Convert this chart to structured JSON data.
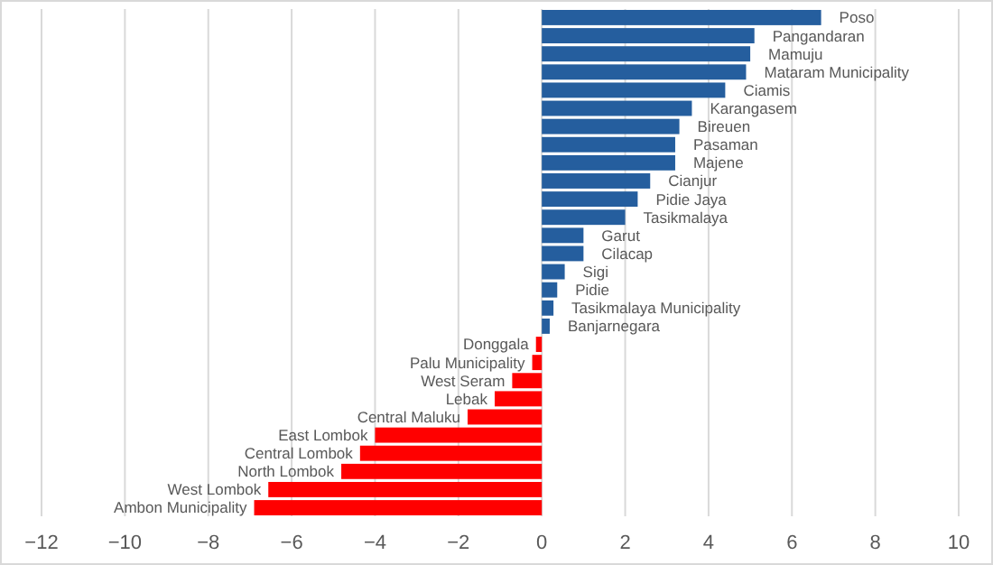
{
  "chart_data": {
    "type": "bar",
    "orientation": "horizontal",
    "categories": [
      "Poso",
      "Pangandaran",
      "Mamuju",
      "Mataram Municipality",
      "Ciamis",
      "Karangasem",
      "Bireuen",
      "Pasaman",
      "Majene",
      "Cianjur",
      "Pidie Jaya",
      "Tasikmalaya",
      "Garut",
      "Cilacap",
      "Sigi",
      "Pidie",
      "Tasikmalaya Municipality",
      "Banjarnegara",
      "Donggala",
      "Palu Municipality",
      "West Seram",
      "Lebak",
      "Central Maluku",
      "East Lombok",
      "Central Lombok",
      "North Lombok",
      "West Lombok",
      "Ambon Municipality"
    ],
    "values": [
      6.7,
      5.1,
      5.0,
      4.9,
      4.4,
      3.6,
      3.3,
      3.2,
      3.2,
      2.6,
      2.3,
      2.0,
      1.0,
      1.0,
      0.55,
      0.37,
      0.28,
      0.19,
      -0.14,
      -0.23,
      -0.71,
      -1.13,
      -1.78,
      -4.0,
      -4.36,
      -4.81,
      -6.56,
      -6.9
    ],
    "colors": [
      "#255e9e",
      "#255e9e",
      "#255e9e",
      "#255e9e",
      "#255e9e",
      "#255e9e",
      "#255e9e",
      "#255e9e",
      "#255e9e",
      "#255e9e",
      "#255e9e",
      "#255e9e",
      "#255e9e",
      "#255e9e",
      "#255e9e",
      "#255e9e",
      "#255e9e",
      "#255e9e",
      "#ff0000",
      "#ff0000",
      "#ff0000",
      "#ff0000",
      "#ff0000",
      "#ff0000",
      "#ff0000",
      "#ff0000",
      "#ff0000",
      "#ff0000"
    ],
    "xlim": [
      -12,
      10
    ],
    "xticks": [
      {
        "value": -12,
        "label": "−12"
      },
      {
        "value": -10,
        "label": "−10"
      },
      {
        "value": -8,
        "label": "−8"
      },
      {
        "value": -6,
        "label": "−6"
      },
      {
        "value": -4,
        "label": "−4"
      },
      {
        "value": -2,
        "label": "−2"
      },
      0,
      2,
      4,
      6,
      8,
      10
    ],
    "grid": "x"
  }
}
